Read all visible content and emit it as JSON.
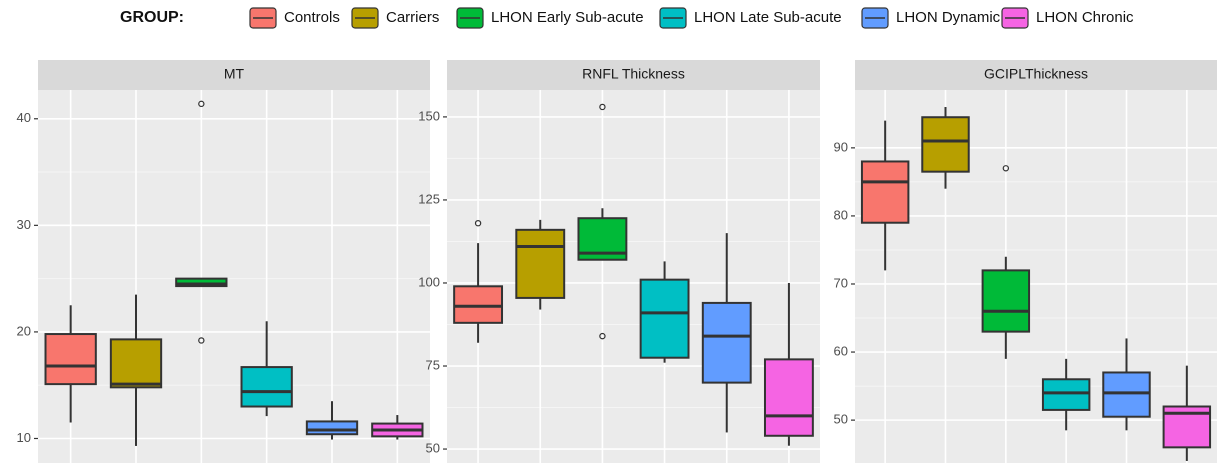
{
  "legend": {
    "title": "GROUP:",
    "items": [
      {
        "name": "Controls",
        "color": "#f8766d"
      },
      {
        "name": "Carriers",
        "color": "#b79f00"
      },
      {
        "name": "LHON Early Sub-acute",
        "color": "#00ba38"
      },
      {
        "name": "LHON Late Sub-acute",
        "color": "#00bfc4"
      },
      {
        "name": "LHON Dynamic",
        "color": "#619cff"
      },
      {
        "name": "LHON Chronic",
        "color": "#f564e3"
      }
    ]
  },
  "chart_data": [
    {
      "type": "box",
      "title": "MT",
      "ylim": [
        7.7,
        42.7
      ],
      "yticks": [
        10,
        20,
        30,
        40
      ],
      "grid": true,
      "boxes": [
        {
          "min": 11.5,
          "q1": 15.1,
          "median": 16.8,
          "q3": 19.8,
          "max": 22.5,
          "outliers": []
        },
        {
          "min": 9.3,
          "q1": 14.8,
          "median": 15.1,
          "q3": 19.3,
          "max": 23.5,
          "outliers": []
        },
        {
          "min": 24.3,
          "q1": 24.3,
          "median": 24.5,
          "q3": 25.0,
          "max": 25.0,
          "outliers": [
            41.4,
            19.2
          ]
        },
        {
          "min": 12.1,
          "q1": 13.0,
          "median": 14.4,
          "q3": 16.7,
          "max": 21.0,
          "outliers": []
        },
        {
          "min": 9.9,
          "q1": 10.4,
          "median": 10.8,
          "q3": 11.6,
          "max": 13.5,
          "outliers": []
        },
        {
          "min": 9.9,
          "q1": 10.2,
          "median": 10.8,
          "q3": 11.4,
          "max": 12.2,
          "outliers": []
        }
      ]
    },
    {
      "type": "box",
      "title": "RNFL Thickness",
      "ylim": [
        45.8,
        158.1
      ],
      "yticks": [
        50,
        75,
        100,
        125,
        150
      ],
      "grid": true,
      "boxes": [
        {
          "min": 82,
          "q1": 88,
          "median": 93,
          "q3": 99,
          "max": 112,
          "outliers": [
            118
          ]
        },
        {
          "min": 92,
          "q1": 95.5,
          "median": 111,
          "q3": 116,
          "max": 119,
          "outliers": []
        },
        {
          "min": 107,
          "q1": 107,
          "median": 109,
          "q3": 119.5,
          "max": 122.5,
          "outliers": [
            153,
            84
          ]
        },
        {
          "min": 76,
          "q1": 77.5,
          "median": 91,
          "q3": 101,
          "max": 106.5,
          "outliers": []
        },
        {
          "min": 55,
          "q1": 70,
          "median": 84,
          "q3": 94,
          "max": 115,
          "outliers": []
        },
        {
          "min": 51,
          "q1": 54,
          "median": 60,
          "q3": 77,
          "max": 100,
          "outliers": []
        }
      ]
    },
    {
      "type": "box",
      "title": "GCIPLThickness",
      "ylim": [
        43.7,
        98.5
      ],
      "yticks": [
        50,
        60,
        70,
        80,
        90
      ],
      "grid": true,
      "boxes": [
        {
          "min": 72,
          "q1": 79,
          "median": 85,
          "q3": 88,
          "max": 94,
          "outliers": []
        },
        {
          "min": 84,
          "q1": 86.5,
          "median": 91,
          "q3": 94.5,
          "max": 96,
          "outliers": []
        },
        {
          "min": 59,
          "q1": 63,
          "median": 66,
          "q3": 72,
          "max": 74,
          "outliers": [
            87
          ]
        },
        {
          "min": 48.5,
          "q1": 51.5,
          "median": 54,
          "q3": 56,
          "max": 59,
          "outliers": []
        },
        {
          "min": 48.5,
          "q1": 50.5,
          "median": 54,
          "q3": 57,
          "max": 62,
          "outliers": []
        },
        {
          "min": 44,
          "q1": 46,
          "median": 51,
          "q3": 52,
          "max": 58,
          "outliers": []
        }
      ]
    }
  ]
}
